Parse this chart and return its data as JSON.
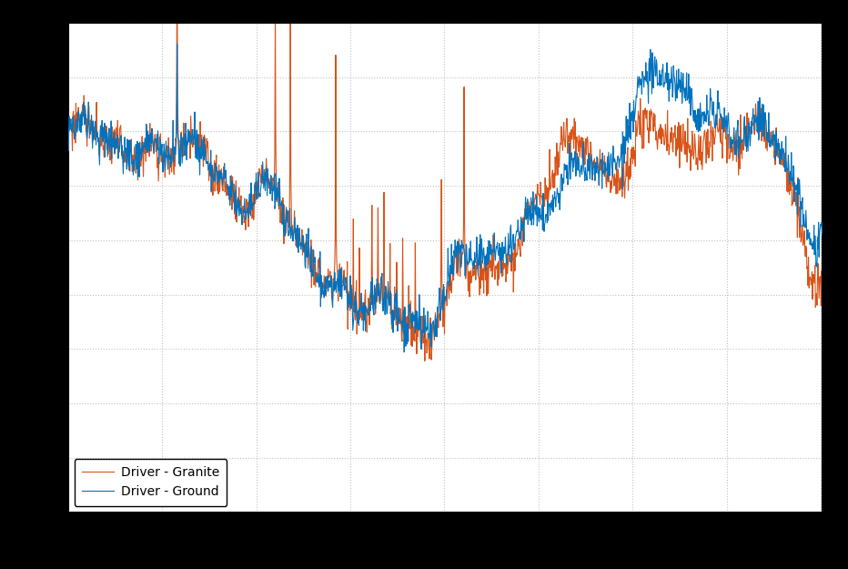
{
  "title": "",
  "xlabel": "",
  "ylabel": "",
  "line1_label": "Driver - Ground",
  "line2_label": "Driver - Granite",
  "line1_color": "#0072BD",
  "line2_color": "#D95319",
  "figure_facecolor": "#000000",
  "axes_facecolor": "#ffffff",
  "grid_color": "#b0b0b0",
  "linewidth": 0.8,
  "n_points": 1500,
  "ylim": [
    -12,
    6
  ],
  "legend_fontsize": 10
}
